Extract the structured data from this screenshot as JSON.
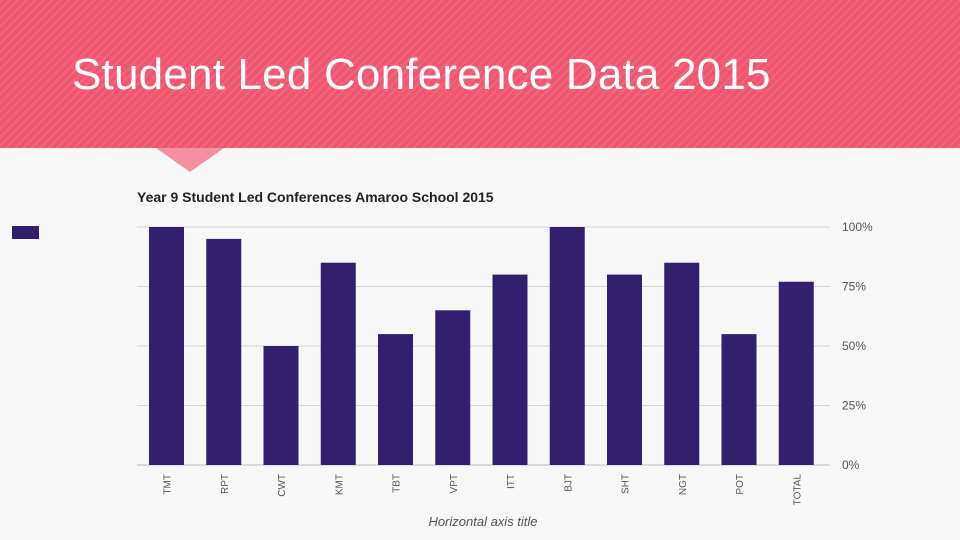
{
  "slide": {
    "title": "Student Led Conference Data 2015"
  },
  "colors": {
    "banner": "#f0566f",
    "bar": "#321f6e",
    "grid": "#d6d6d6",
    "text": "#555555"
  },
  "chart_data": {
    "type": "bar",
    "title": "Year 9 Student Led Conferences Amaroo School 2015",
    "xlabel": "Horizontal axis title",
    "ylabel": "",
    "ylim": [
      0,
      1
    ],
    "y_ticks": [
      {
        "value": 0,
        "label": "0%"
      },
      {
        "value": 0.25,
        "label": "25%"
      },
      {
        "value": 0.5,
        "label": "50%"
      },
      {
        "value": 0.75,
        "label": "75%"
      },
      {
        "value": 1,
        "label": "100%"
      }
    ],
    "y_axis_side": "right",
    "grid": true,
    "legend": "left",
    "categories": [
      "TMT",
      "RPT",
      "CWT",
      "KMT",
      "TBT",
      "VPT",
      "ITT",
      "BJT",
      "SHT",
      "NGT",
      "POT",
      "TOTAL"
    ],
    "values": [
      1.0,
      0.95,
      0.5,
      0.85,
      0.55,
      0.65,
      0.8,
      1.0,
      0.8,
      0.85,
      0.55,
      0.77
    ]
  }
}
